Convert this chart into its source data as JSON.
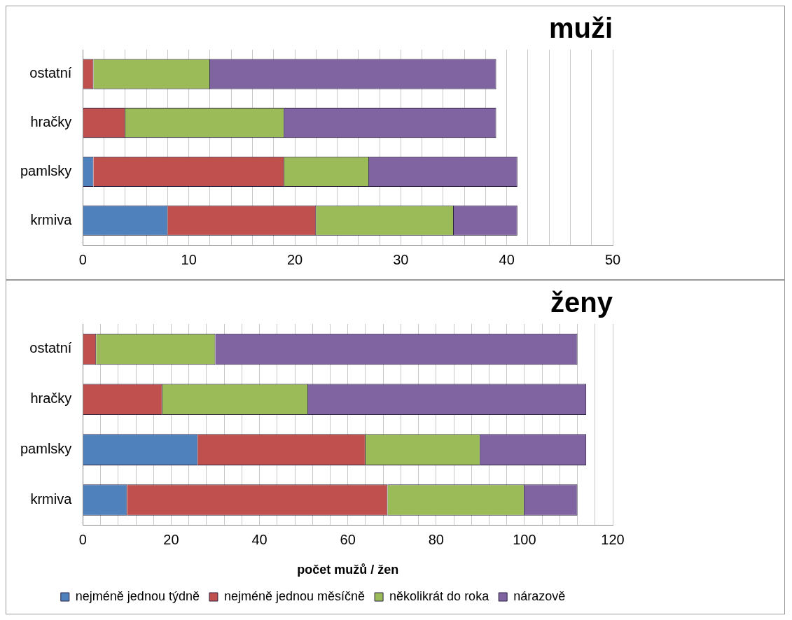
{
  "chart_data": [
    {
      "type": "bar",
      "orientation": "horizontal",
      "stacked": true,
      "title": "muži",
      "categories": [
        "ostatní",
        "hračky",
        "pamlsky",
        "krmiva"
      ],
      "series": [
        {
          "color": "#4f81bd",
          "values": [
            0,
            0,
            1,
            8
          ]
        },
        {
          "color": "#c0504d",
          "values": [
            1,
            4,
            18,
            14
          ]
        },
        {
          "color": "#9bbb59",
          "values": [
            11,
            15,
            8,
            13
          ]
        },
        {
          "color": "#8064a2",
          "values": [
            27,
            20,
            14,
            6
          ]
        }
      ],
      "xlim": [
        0,
        50
      ],
      "xticks": [
        0,
        {
          "value": 2,
          "label": null
        },
        {
          "value": 4,
          "label": null
        },
        {
          "value": 6,
          "label": null
        },
        {
          "value": 8,
          "label": null
        },
        10,
        {
          "value": 12,
          "label": null
        },
        {
          "value": 14,
          "label": null
        },
        {
          "value": 16,
          "label": null
        },
        {
          "value": 18,
          "label": null
        },
        20,
        {
          "value": 22,
          "label": null
        },
        {
          "value": 24,
          "label": null
        },
        {
          "value": 26,
          "label": null
        },
        {
          "value": 28,
          "label": null
        },
        30,
        {
          "value": 32,
          "label": null
        },
        {
          "value": 34,
          "label": null
        },
        {
          "value": 36,
          "label": null
        },
        {
          "value": 38,
          "label": null
        },
        40,
        {
          "value": 42,
          "label": null
        },
        {
          "value": 44,
          "label": null
        },
        {
          "value": 46,
          "label": null
        },
        {
          "value": 48,
          "label": null
        },
        50
      ],
      "grid": "x",
      "legend": false
    },
    {
      "type": "bar",
      "orientation": "horizontal",
      "stacked": true,
      "title": "ženy",
      "xlabel": "počet mužů / žen",
      "categories": [
        "ostatní",
        "hračky",
        "pamlsky",
        "krmiva"
      ],
      "series": [
        {
          "name": "nejméně jednou týdně",
          "color": "#4f81bd",
          "values": [
            0,
            0,
            26,
            10
          ]
        },
        {
          "name": "nejméně jednou měsíčně",
          "color": "#c0504d",
          "values": [
            3,
            18,
            38,
            59
          ]
        },
        {
          "name": "několikrát do roka",
          "color": "#9bbb59",
          "values": [
            27,
            33,
            26,
            31
          ]
        },
        {
          "name": "nárazově",
          "color": "#8064a2",
          "values": [
            82,
            63,
            24,
            12
          ]
        }
      ],
      "xlim": [
        0,
        120
      ],
      "xticks": [
        0,
        {
          "value": 4,
          "label": null
        },
        {
          "value": 8,
          "label": null
        },
        {
          "value": 12,
          "label": null
        },
        {
          "value": 16,
          "label": null
        },
        20,
        {
          "value": 24,
          "label": null
        },
        {
          "value": 28,
          "label": null
        },
        {
          "value": 32,
          "label": null
        },
        {
          "value": 36,
          "label": null
        },
        40,
        {
          "value": 44,
          "label": null
        },
        {
          "value": 48,
          "label": null
        },
        {
          "value": 52,
          "label": null
        },
        {
          "value": 56,
          "label": null
        },
        60,
        {
          "value": 64,
          "label": null
        },
        {
          "value": 68,
          "label": null
        },
        {
          "value": 72,
          "label": null
        },
        {
          "value": 76,
          "label": null
        },
        80,
        {
          "value": 84,
          "label": null
        },
        {
          "value": 88,
          "label": null
        },
        {
          "value": 92,
          "label": null
        },
        {
          "value": 96,
          "label": null
        },
        100,
        {
          "value": 104,
          "label": null
        },
        {
          "value": 108,
          "label": null
        },
        {
          "value": 112,
          "label": null
        },
        {
          "value": 116,
          "label": null
        },
        120
      ],
      "grid": "x",
      "legend": "bottom"
    }
  ]
}
